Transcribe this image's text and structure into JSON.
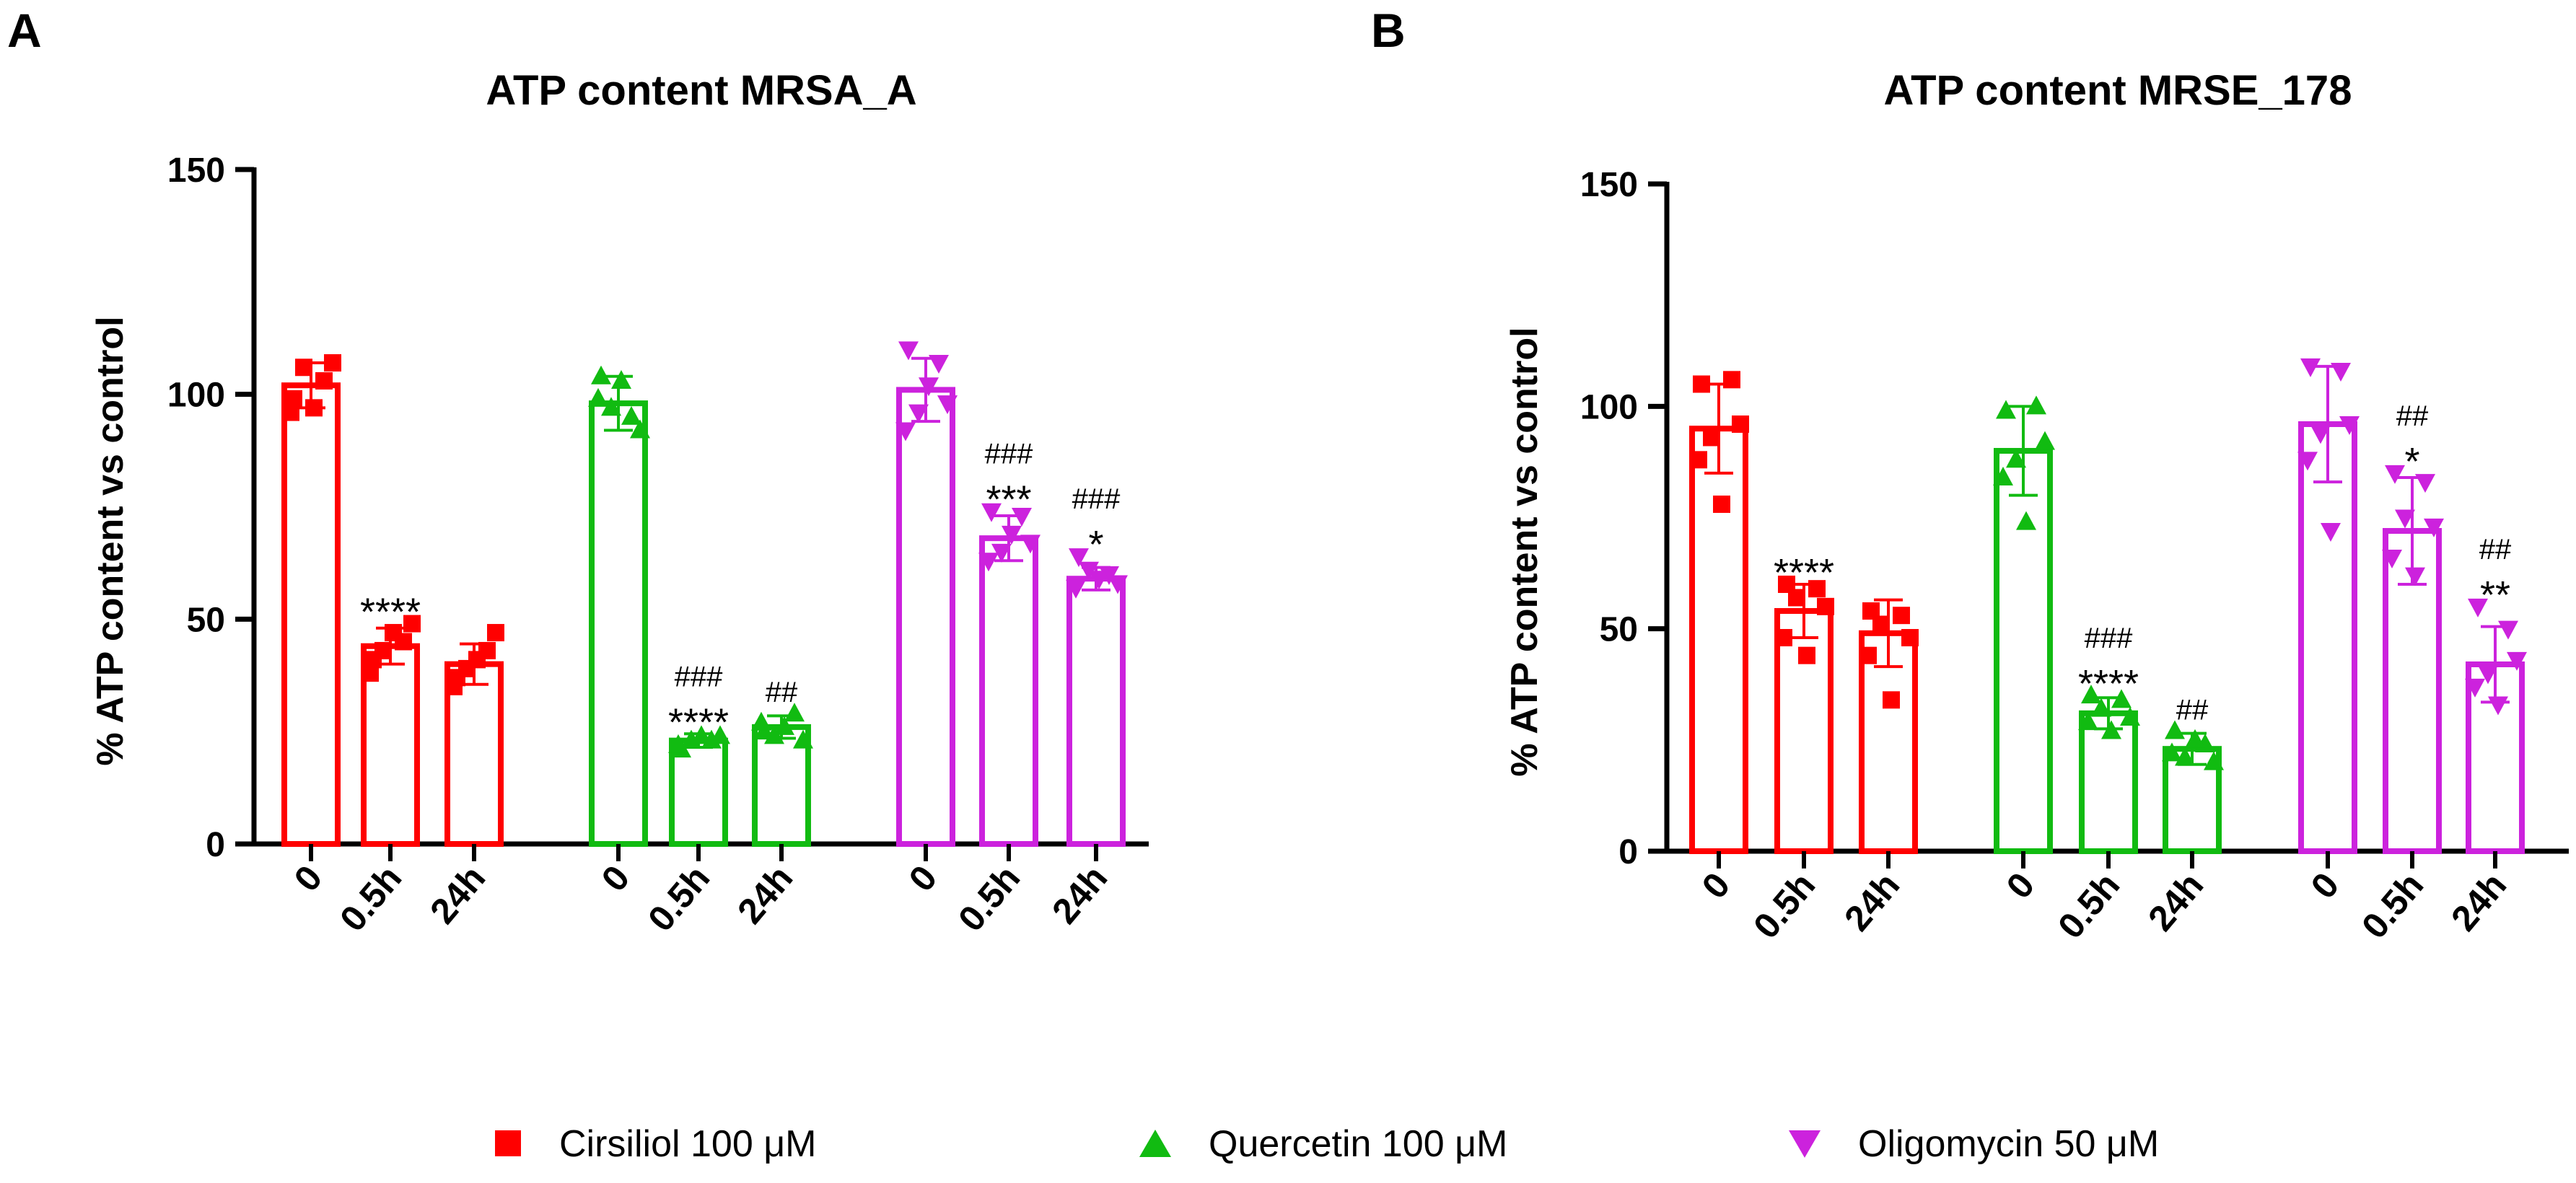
{
  "colors": {
    "cirsiliol": "#ff0000",
    "quercetin": "#11bb11",
    "oligomycin": "#cc22dd",
    "axis": "#000000"
  },
  "legend": [
    {
      "label": "Cirsiliol 100 μM",
      "marker": "square",
      "color": "#ff0000"
    },
    {
      "label": "Quercetin 100 μM",
      "marker": "triangle-up",
      "color": "#11bb11"
    },
    {
      "label": "Oligomycin 50 μM",
      "marker": "triangle-down",
      "color": "#cc22dd"
    }
  ],
  "chart_data": [
    {
      "panel": "A",
      "type": "bar",
      "title": "ATP content MRSA_A",
      "ylabel": "% ATP content vs control",
      "xlabel": "",
      "ylim": [
        0,
        150
      ],
      "yticks": [
        "0",
        "50",
        "100",
        "150"
      ],
      "groups": [
        {
          "name": "Cirsiliol 100 μM",
          "marker": "square",
          "colorKey": "cirsiliol",
          "bars": [
            {
              "label": "0",
              "value": 102,
              "sd": 5,
              "points": [
                99,
                103,
                107,
                96,
                97,
                106
              ],
              "stars": "",
              "hashes": ""
            },
            {
              "label": "0.5h",
              "value": 44,
              "sd": 4,
              "points": [
                41,
                45,
                49,
                38,
                47,
                43
              ],
              "stars": "****",
              "hashes": ""
            },
            {
              "label": "24h",
              "value": 40,
              "sd": 4.5,
              "points": [
                37,
                43,
                47,
                35,
                41,
                39
              ],
              "stars": "",
              "hashes": ""
            }
          ]
        },
        {
          "name": "Quercetin 100 μM",
          "marker": "triangle-up",
          "colorKey": "quercetin",
          "bars": [
            {
              "label": "0",
              "value": 98,
              "sd": 6,
              "points": [
                104,
                95,
                92,
                99,
                103,
                97
              ],
              "stars": "",
              "hashes": ""
            },
            {
              "label": "0.5h",
              "value": 23,
              "sd": 1.5,
              "points": [
                21,
                23,
                24,
                22,
                24,
                23
              ],
              "stars": "****",
              "hashes": "###"
            },
            {
              "label": "24h",
              "value": 26,
              "sd": 2.5,
              "points": [
                25,
                29,
                23,
                27,
                26,
                24
              ],
              "stars": "",
              "hashes": "##"
            }
          ]
        },
        {
          "name": "Oligomycin 50 μM",
          "marker": "triangle-down",
          "colorKey": "oligomycin",
          "bars": [
            {
              "label": "0",
              "value": 101,
              "sd": 7,
              "points": [
                110,
                107,
                98,
                92,
                102,
                96
              ],
              "stars": "",
              "hashes": ""
            },
            {
              "label": "0.5h",
              "value": 68,
              "sd": 5,
              "points": [
                74,
                73,
                67,
                63,
                69,
                65
              ],
              "stars": "***",
              "hashes": "###"
            },
            {
              "label": "24h",
              "value": 59,
              "sd": 2.5,
              "points": [
                64,
                60,
                58,
                57,
                59,
                61
              ],
              "stars": "*",
              "hashes": "###"
            }
          ]
        }
      ]
    },
    {
      "panel": "B",
      "type": "bar",
      "title": "ATP content MRSE_178",
      "ylabel": "% ATP content vs control",
      "xlabel": "",
      "ylim": [
        0,
        150
      ],
      "yticks": [
        "0",
        "50",
        "100",
        "150"
      ],
      "groups": [
        {
          "name": "Cirsiliol 100 μM",
          "marker": "square",
          "colorKey": "cirsiliol",
          "bars": [
            {
              "label": "0",
              "value": 95,
              "sd": 10,
              "points": [
                105,
                106,
                96,
                88,
                78,
                93
              ],
              "stars": "",
              "hashes": ""
            },
            {
              "label": "0.5h",
              "value": 54,
              "sd": 6,
              "points": [
                60,
                59,
                55,
                48,
                44,
                57
              ],
              "stars": "****",
              "hashes": ""
            },
            {
              "label": "24h",
              "value": 49,
              "sd": 7.5,
              "points": [
                54,
                53,
                48,
                44,
                34,
                51
              ],
              "stars": "",
              "hashes": ""
            }
          ]
        },
        {
          "name": "Quercetin 100 μM",
          "marker": "triangle-up",
          "colorKey": "quercetin",
          "bars": [
            {
              "label": "0",
              "value": 90,
              "sd": 10,
              "points": [
                99,
                100,
                92,
                84,
                74,
                88
              ],
              "stars": "",
              "hashes": ""
            },
            {
              "label": "0.5h",
              "value": 31,
              "sd": 3.5,
              "points": [
                35,
                34,
                30,
                29,
                27,
                32
              ],
              "stars": "****",
              "hashes": "###"
            },
            {
              "label": "24h",
              "value": 23,
              "sd": 3.5,
              "points": [
                27,
                24,
                20,
                22,
                25,
                21
              ],
              "stars": "",
              "hashes": "##"
            }
          ]
        },
        {
          "name": "Oligomycin 50 μM",
          "marker": "triangle-down",
          "colorKey": "oligomycin",
          "bars": [
            {
              "label": "0",
              "value": 96,
              "sd": 13,
              "points": [
                109,
                108,
                96,
                88,
                72,
                94
              ],
              "stars": "",
              "hashes": ""
            },
            {
              "label": "0.5h",
              "value": 72,
              "sd": 12,
              "points": [
                85,
                83,
                73,
                66,
                62,
                75
              ],
              "stars": "*",
              "hashes": "##"
            },
            {
              "label": "24h",
              "value": 42,
              "sd": 8.5,
              "points": [
                55,
                50,
                43,
                37,
                33,
                40
              ],
              "stars": "**",
              "hashes": "##"
            }
          ]
        }
      ]
    }
  ]
}
